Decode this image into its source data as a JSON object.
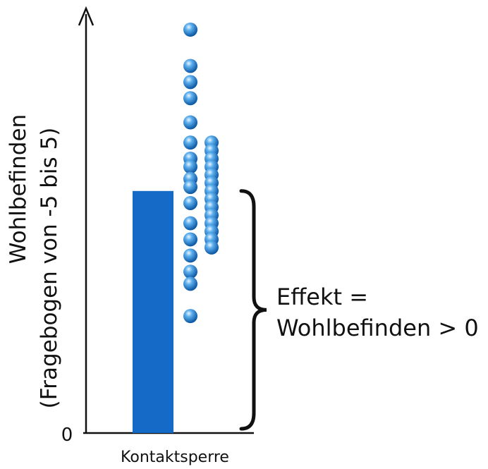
{
  "chart_data": {
    "type": "bar",
    "categories": [
      "Kontaktsperre"
    ],
    "values": [
      3.0
    ],
    "ylabel_line1": "Wohlbefinden",
    "ylabel_line2": "(Fragebogen von -5 bis 5)",
    "y_tick_zero": "0",
    "ylim": [
      0,
      5.2
    ],
    "grid": false,
    "points": [
      {
        "col": 0,
        "y": 5.0
      },
      {
        "col": 0,
        "y": 4.55
      },
      {
        "col": 0,
        "y": 4.35
      },
      {
        "col": 0,
        "y": 4.15
      },
      {
        "col": 0,
        "y": 3.85
      },
      {
        "col": 0,
        "y": 3.6
      },
      {
        "col": 0,
        "y": 3.4
      },
      {
        "col": 0,
        "y": 3.3
      },
      {
        "col": 0,
        "y": 3.15
      },
      {
        "col": 0,
        "y": 3.05
      },
      {
        "col": 0,
        "y": 2.85
      },
      {
        "col": 0,
        "y": 2.6
      },
      {
        "col": 0,
        "y": 2.4
      },
      {
        "col": 0,
        "y": 2.2
      },
      {
        "col": 0,
        "y": 2.0
      },
      {
        "col": 0,
        "y": 1.85
      },
      {
        "col": 0,
        "y": 1.45
      },
      {
        "col": 1,
        "y": 3.6
      },
      {
        "col": 1,
        "y": 3.5
      },
      {
        "col": 1,
        "y": 3.4
      },
      {
        "col": 1,
        "y": 3.3
      },
      {
        "col": 1,
        "y": 3.2
      },
      {
        "col": 1,
        "y": 3.1
      },
      {
        "col": 1,
        "y": 3.0
      },
      {
        "col": 1,
        "y": 2.9
      },
      {
        "col": 1,
        "y": 2.8
      },
      {
        "col": 1,
        "y": 2.7
      },
      {
        "col": 1,
        "y": 2.6
      },
      {
        "col": 1,
        "y": 2.5
      },
      {
        "col": 1,
        "y": 2.4
      },
      {
        "col": 1,
        "y": 2.3
      }
    ],
    "annotation_line1": "Effekt =",
    "annotation_line2": "Wohlbefinden > 0"
  },
  "colors": {
    "bar": "#1569c7",
    "point": "#2a8ad8",
    "axis": "#111111"
  }
}
